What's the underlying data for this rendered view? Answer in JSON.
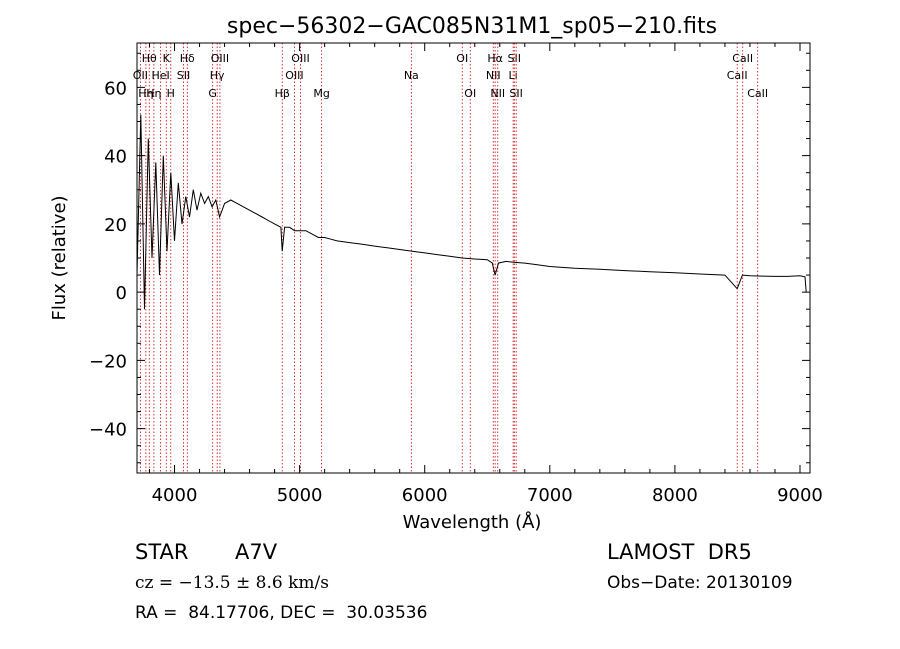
{
  "chart_data": {
    "type": "line",
    "title": "spec−56302−GAC085N31M1_sp05−210.fits",
    "xlabel": "Wavelength (Å)",
    "ylabel": "Flux (relative)",
    "xlim": [
      3700,
      9080
    ],
    "ylim": [
      -53,
      73
    ],
    "x_ticks": [
      4000,
      5000,
      6000,
      7000,
      8000,
      9000
    ],
    "x_tick_labels": [
      "4000",
      "5000",
      "6000",
      "7000",
      "8000",
      "9000"
    ],
    "y_ticks": [
      -40,
      -20,
      0,
      20,
      40,
      60
    ],
    "y_tick_labels": [
      "−40",
      "−20",
      "0",
      "20",
      "40",
      "60"
    ],
    "grid": false,
    "line_color": "#000000",
    "marker_line_color": "#cc0000",
    "series": [
      {
        "x": [
          3700,
          3730,
          3760,
          3790,
          3820,
          3850,
          3880,
          3910,
          3940,
          3970,
          4000,
          4030,
          4060,
          4090,
          4120,
          4150,
          4180,
          4210,
          4240,
          4270,
          4300,
          4330,
          4360,
          4400,
          4450,
          4500,
          4550,
          4600,
          4650,
          4700,
          4750,
          4800,
          4850,
          4861,
          4880,
          4920,
          4960,
          5000,
          5050,
          5100,
          5150,
          5200,
          5250,
          5300,
          5400,
          5500,
          5600,
          5700,
          5800,
          5900,
          6000,
          6100,
          6200,
          6300,
          6400,
          6500,
          6540,
          6563,
          6590,
          6650,
          6700,
          6800,
          6900,
          7000,
          7200,
          7400,
          7600,
          7800,
          8000,
          8200,
          8400,
          8498,
          8540,
          8600,
          8700,
          8800,
          8900,
          9000,
          9040,
          9050
        ],
        "y": [
          5,
          52,
          -5,
          45,
          10,
          38,
          5,
          40,
          12,
          35,
          15,
          32,
          20,
          28,
          22,
          30,
          24,
          29,
          26,
          28,
          25,
          27,
          22,
          26,
          27,
          26,
          25,
          24,
          23,
          22,
          21,
          20,
          19,
          12,
          19,
          19,
          18,
          18,
          18,
          17,
          16,
          16,
          15.5,
          15,
          14.5,
          14,
          13.5,
          13,
          12.5,
          12,
          11.5,
          11,
          10.5,
          10,
          9.7,
          9.5,
          8.5,
          5,
          8.5,
          9,
          8.8,
          8.5,
          8,
          7.5,
          7,
          6.7,
          6.3,
          6,
          5.7,
          5.3,
          5,
          1,
          5,
          4.8,
          4.7,
          4.6,
          4.6,
          4.8,
          4.5,
          0
        ]
      }
    ],
    "line_markers": [
      {
        "x": 3727,
        "labels": [
          "OII"
        ],
        "level": 2
      },
      {
        "x": 3771,
        "labels": [
          "Hη"
        ],
        "level": 3
      },
      {
        "x": 3798,
        "labels": [
          "Hθ"
        ],
        "level": 1
      },
      {
        "x": 3835,
        "labels": [
          "Hη"
        ],
        "level": 3
      },
      {
        "x": 3889,
        "labels": [
          "HeI"
        ],
        "level": 2
      },
      {
        "x": 3934,
        "labels": [
          "K"
        ],
        "level": 1
      },
      {
        "x": 3970,
        "labels": [
          "H"
        ],
        "level": 3
      },
      {
        "x": 4072,
        "labels": [
          "SII"
        ],
        "level": 2
      },
      {
        "x": 4102,
        "labels": [
          "Hδ"
        ],
        "level": 1
      },
      {
        "x": 4305,
        "labels": [
          "G"
        ],
        "level": 3
      },
      {
        "x": 4341,
        "labels": [
          "Hγ"
        ],
        "level": 2
      },
      {
        "x": 4363,
        "labels": [
          "OIII"
        ],
        "level": 1
      },
      {
        "x": 4861,
        "labels": [
          "Hβ"
        ],
        "level": 3
      },
      {
        "x": 4959,
        "labels": [
          "OIII"
        ],
        "level": 2
      },
      {
        "x": 5007,
        "labels": [
          "OIII"
        ],
        "level": 1
      },
      {
        "x": 5176,
        "labels": [
          "Mg"
        ],
        "level": 3
      },
      {
        "x": 5893,
        "labels": [
          "Na"
        ],
        "level": 2
      },
      {
        "x": 6300,
        "labels": [
          "OI"
        ],
        "level": 1
      },
      {
        "x": 6364,
        "labels": [
          "OI"
        ],
        "level": 3
      },
      {
        "x": 6548,
        "labels": [
          "NII"
        ],
        "level": 2
      },
      {
        "x": 6563,
        "labels": [
          "Hα"
        ],
        "level": 1
      },
      {
        "x": 6584,
        "labels": [
          "NII"
        ],
        "level": 3
      },
      {
        "x": 6707,
        "labels": [
          "Li"
        ],
        "level": 2
      },
      {
        "x": 6716,
        "labels": [
          "SII"
        ],
        "level": 1
      },
      {
        "x": 6731,
        "labels": [
          "SII"
        ],
        "level": 3
      },
      {
        "x": 8498,
        "labels": [
          "CaII"
        ],
        "level": 2
      },
      {
        "x": 8542,
        "labels": [
          "CaII"
        ],
        "level": 1
      },
      {
        "x": 8662,
        "labels": [
          "CaII"
        ],
        "level": 3
      }
    ]
  },
  "info": {
    "class_label": "STAR",
    "subclass": "A7V",
    "cz": "cz = −13.5 ± 8.6 km/s",
    "coords": "RA =  84.17706, DEC =  30.03536",
    "survey": "LAMOST  DR5",
    "obs_date": "Obs−Date: 20130109"
  }
}
